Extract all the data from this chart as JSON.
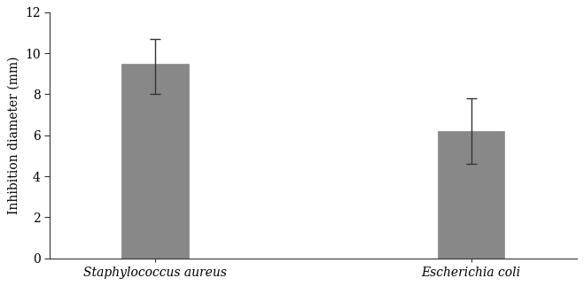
{
  "categories": [
    "Staphylococcus aureus",
    "Escherichia coli"
  ],
  "values": [
    9.5,
    6.2
  ],
  "errors_upper": [
    1.2,
    1.6
  ],
  "errors_lower": [
    1.5,
    1.6
  ],
  "bar_color": "#888888",
  "bar_width": 0.38,
  "bar_positions": [
    1,
    2.8
  ],
  "ylabel": "Inhibition diameter (mm)",
  "ylim": [
    0,
    12
  ],
  "yticks": [
    0,
    2,
    4,
    6,
    8,
    10,
    12
  ],
  "xlim": [
    0.4,
    3.4
  ],
  "background_color": "#ffffff",
  "error_color": "#333333",
  "error_capsize": 4,
  "error_linewidth": 1.0,
  "label_fontsize": 10,
  "tick_fontsize": 10,
  "ylabel_fontsize": 10
}
